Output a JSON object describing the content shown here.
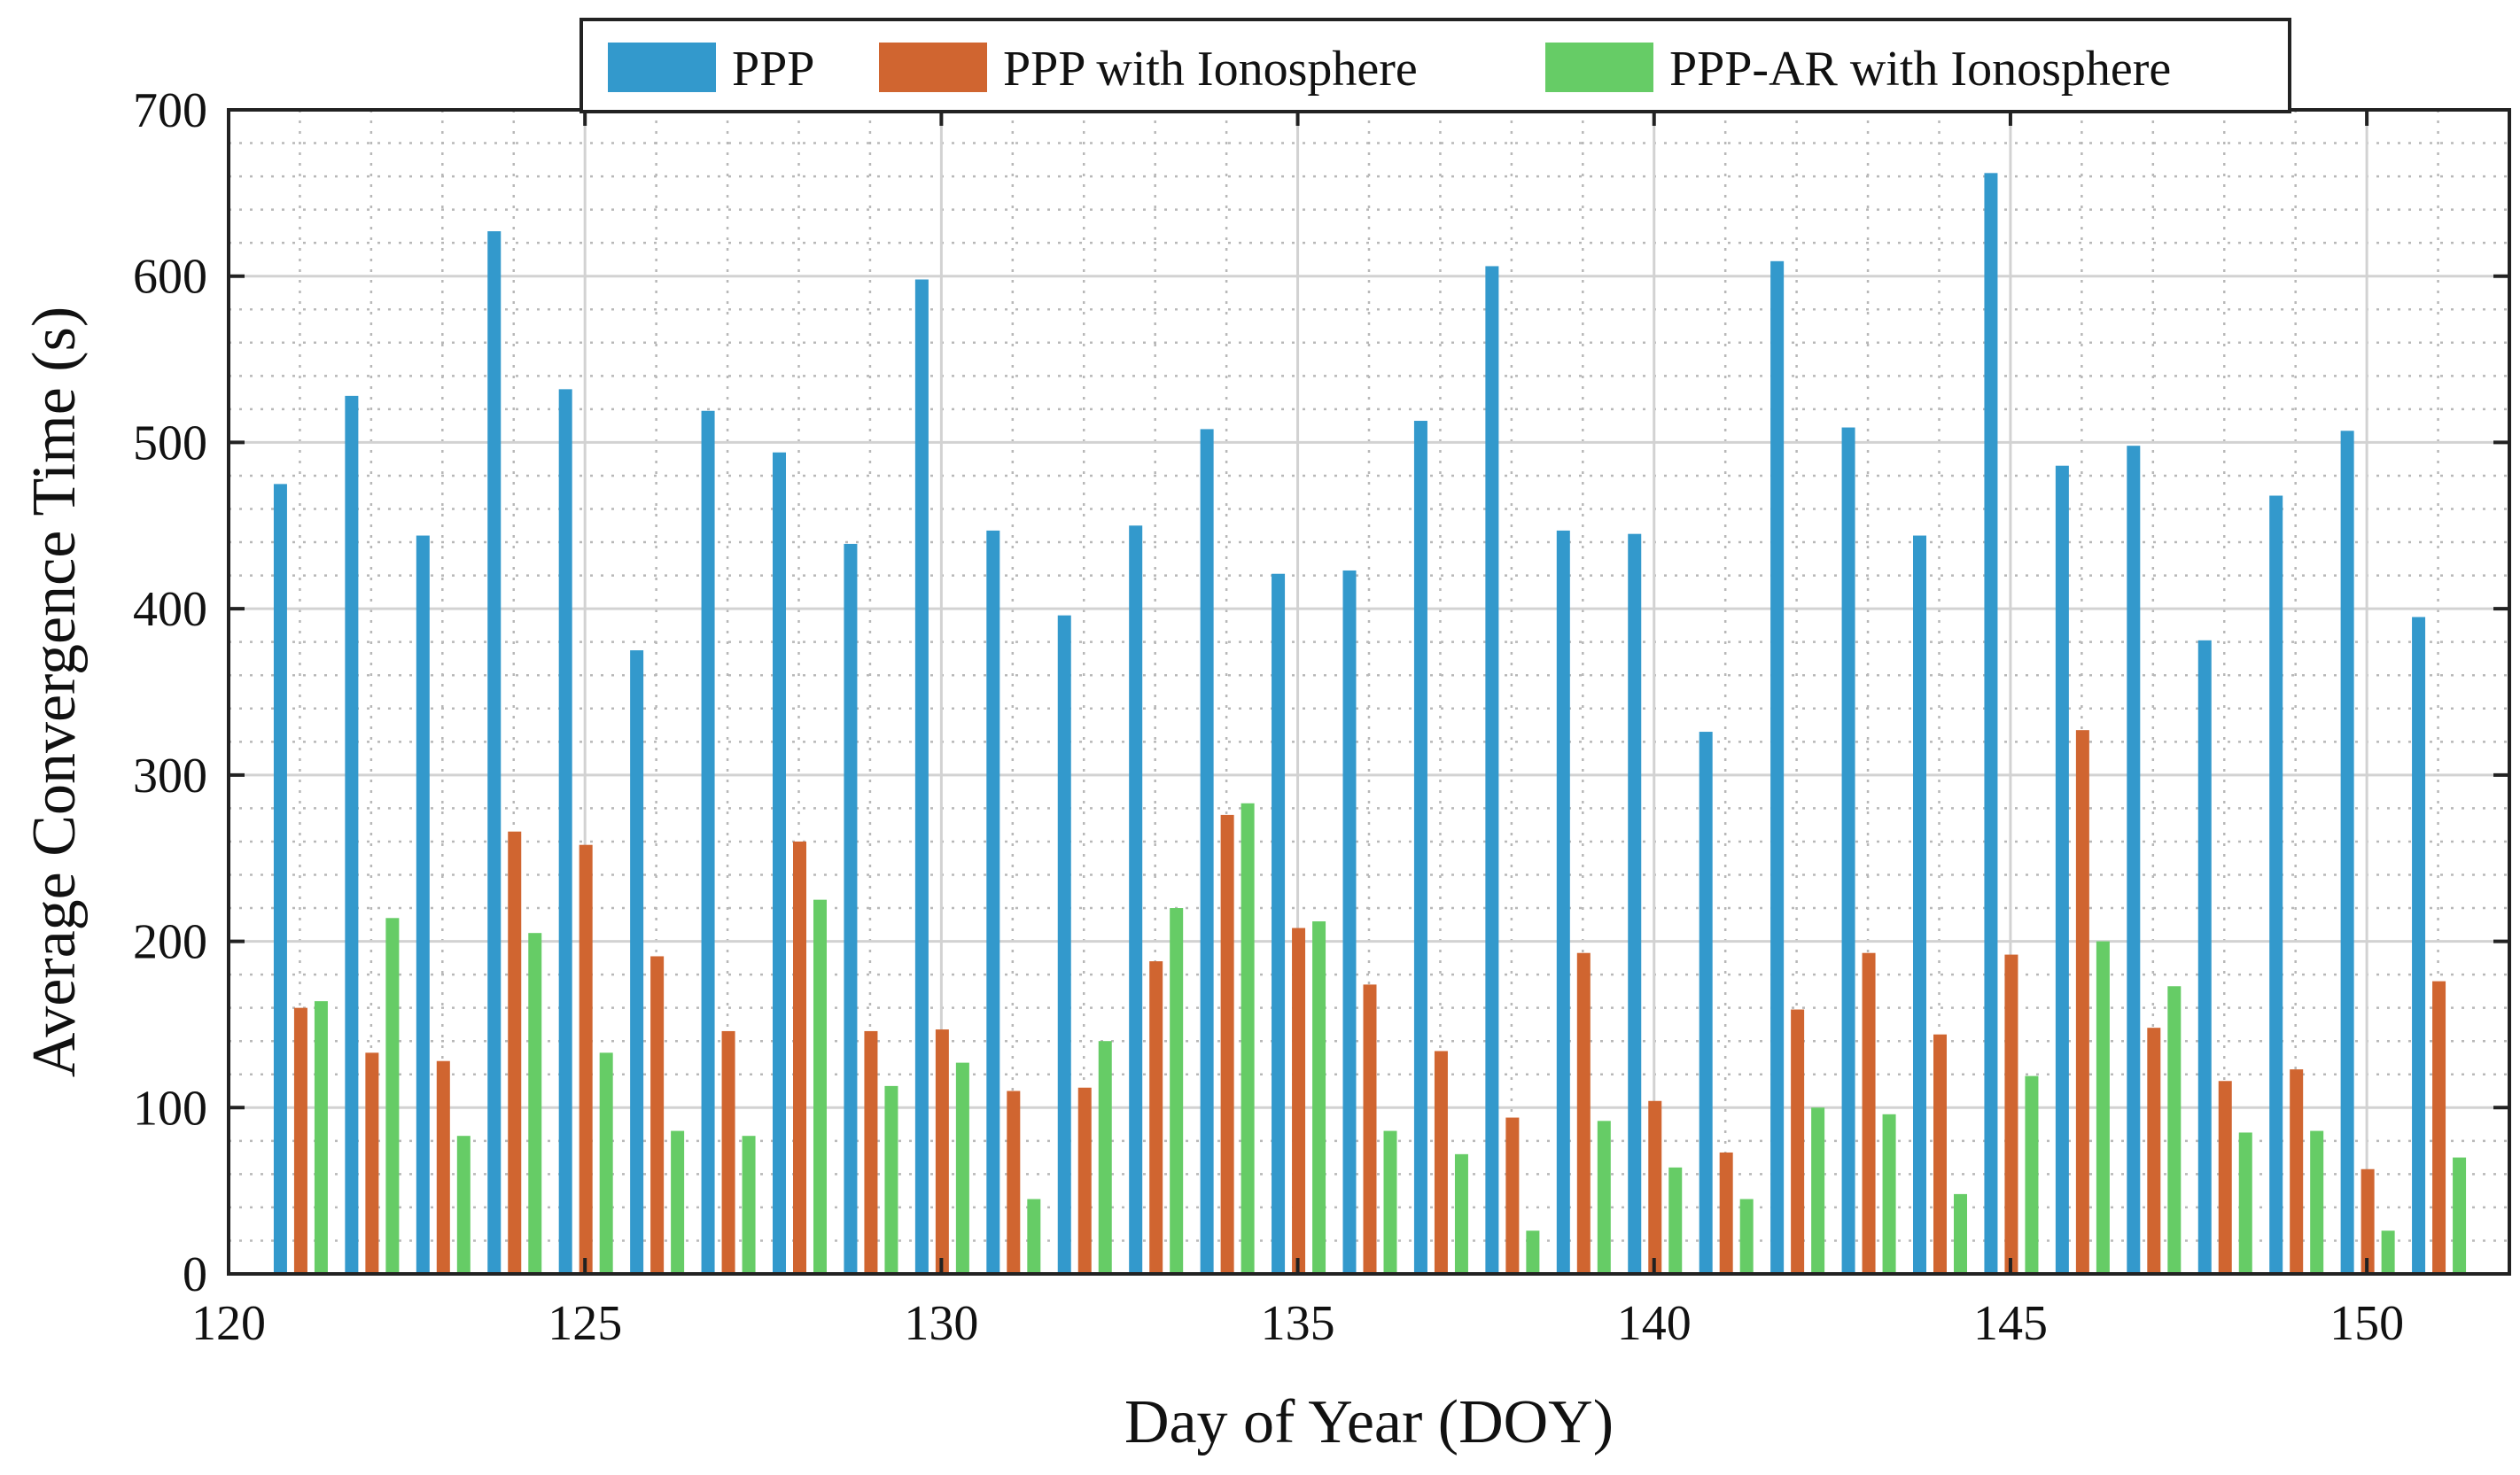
{
  "chart_data": {
    "type": "bar",
    "title": "",
    "xlabel": "Day of Year (DOY)",
    "ylabel": "Average Convergence Time (s)",
    "xlim": [
      120,
      152
    ],
    "ylim": [
      0,
      700
    ],
    "xticks": [
      120,
      125,
      130,
      135,
      140,
      145,
      150
    ],
    "yticks": [
      0,
      100,
      200,
      300,
      400,
      500,
      600,
      700
    ],
    "grid": true,
    "legend_position": "top-outside",
    "categories": [
      121,
      122,
      123,
      124,
      125,
      126,
      127,
      128,
      129,
      130,
      131,
      132,
      133,
      134,
      135,
      136,
      137,
      138,
      139,
      140,
      141,
      142,
      143,
      144,
      145,
      146,
      147,
      148,
      149,
      150,
      151
    ],
    "series": [
      {
        "name": "PPP",
        "color": "#3399cc",
        "values": [
          475,
          528,
          444,
          627,
          532,
          375,
          519,
          494,
          439,
          598,
          447,
          396,
          450,
          508,
          421,
          423,
          513,
          606,
          447,
          445,
          326,
          609,
          509,
          444,
          662,
          486,
          498,
          381,
          468,
          507,
          395
        ]
      },
      {
        "name": "PPP with Ionosphere",
        "color": "#d06530",
        "values": [
          160,
          133,
          128,
          266,
          258,
          191,
          146,
          260,
          146,
          147,
          110,
          112,
          188,
          276,
          208,
          174,
          134,
          94,
          193,
          104,
          73,
          159,
          193,
          144,
          192,
          327,
          148,
          116,
          123,
          63,
          176
        ]
      },
      {
        "name": "PPP-AR with Ionosphere",
        "color": "#66cc66",
        "values": [
          164,
          214,
          83,
          205,
          133,
          86,
          83,
          225,
          113,
          127,
          45,
          140,
          220,
          283,
          212,
          86,
          72,
          26,
          92,
          64,
          45,
          100,
          96,
          48,
          119,
          200,
          173,
          85,
          86,
          26,
          70
        ]
      }
    ]
  }
}
